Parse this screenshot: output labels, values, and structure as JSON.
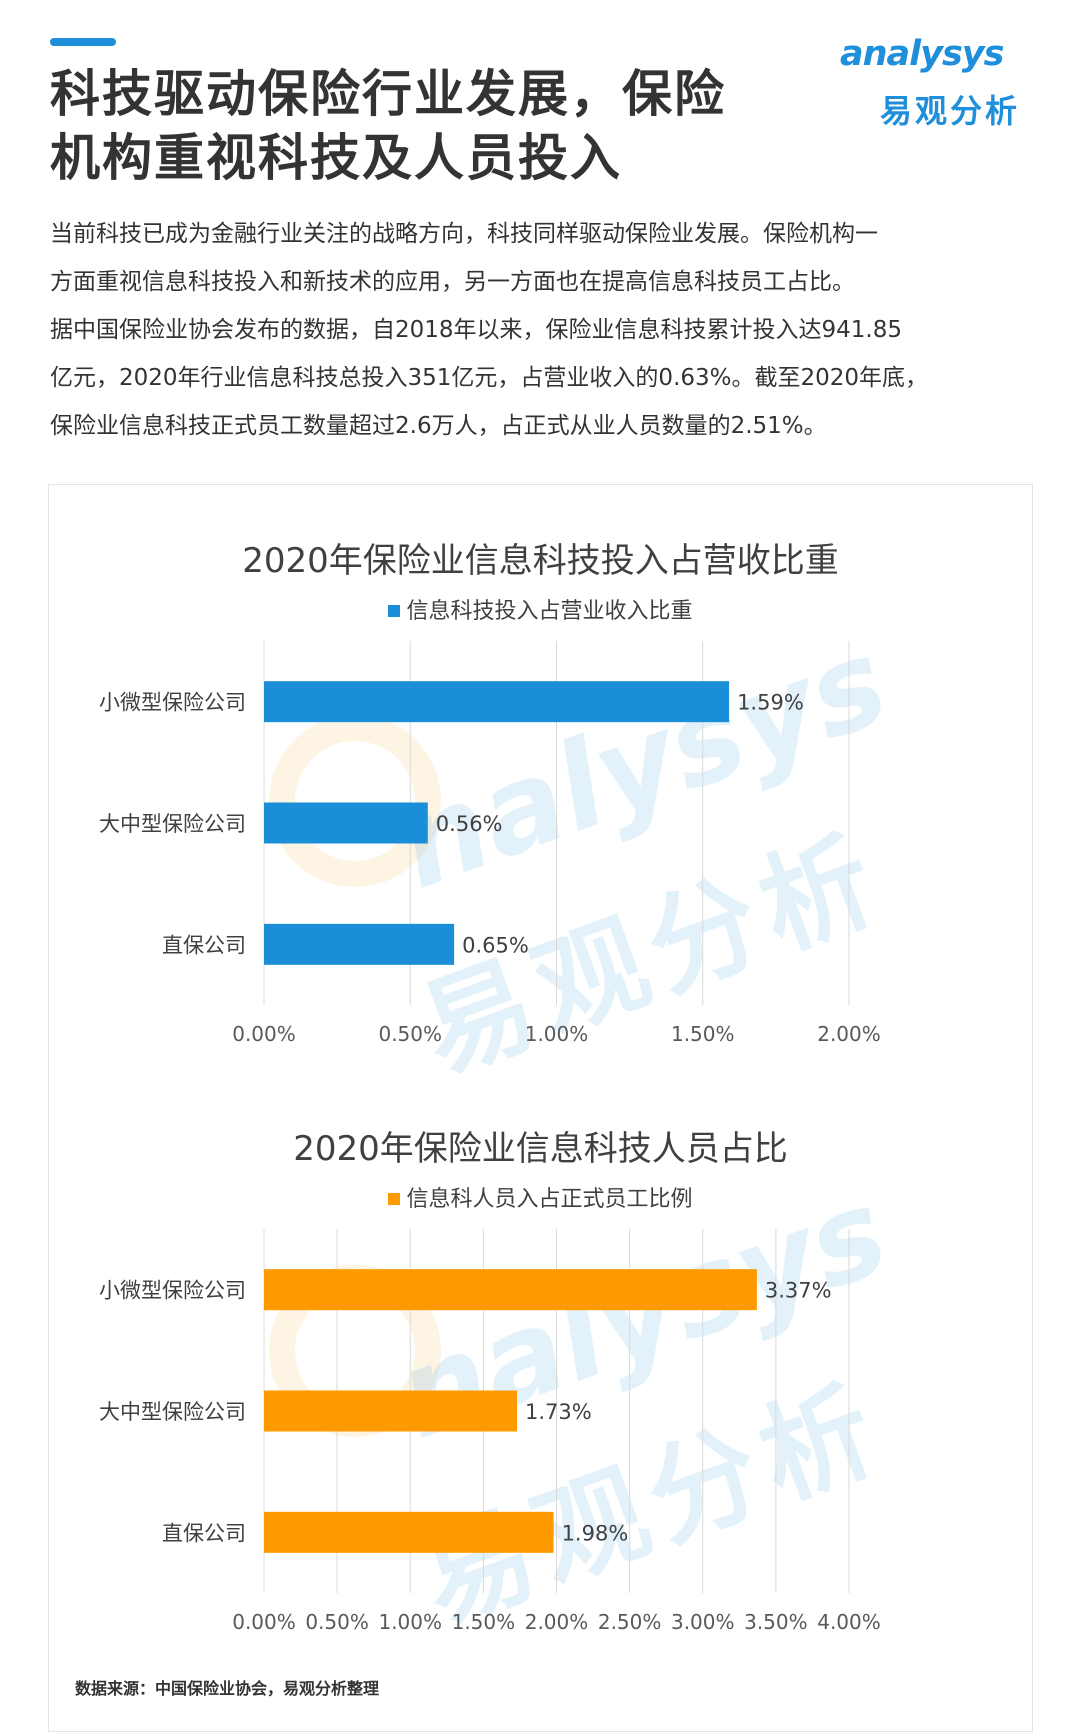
{
  "header": {
    "title_line1": "科技驱动保险行业发展，保险",
    "title_line2": "机构重视科技及人员投入",
    "logo_text": "analysys",
    "logo_cn": "易观分析"
  },
  "intro": [
    "当前科技已成为金融行业关注的战略方向，科技同样驱动保险业发展。保险机构一",
    "方面重视信息科技投入和新技术的应用，另一方面也在提高信息科技员工占比。",
    "据中国保险业协会发布的数据，自2018年以来，保险业信息科技累计投入达941.85",
    "亿元，2020年行业信息科技总投入351亿元，占营业收入的0.63%。截至2020年底，",
    "保险业信息科技正式员工数量超过2.6万人，占正式从业人员数量的2.51%。"
  ],
  "watermark": {
    "en": "nalysys",
    "cn": "易观分析"
  },
  "chart_data": [
    {
      "type": "bar",
      "orientation": "horizontal",
      "title": "2020年保险业信息科技投入占营收比重",
      "categories": [
        "小微型保险公司",
        "大中型保险公司",
        "直保公司"
      ],
      "series": [
        {
          "name": "信息科技投入占营业收入比重",
          "values": [
            1.59,
            0.56,
            0.65
          ],
          "color": "#1a8fd8"
        }
      ],
      "value_labels": [
        "1.59%",
        "0.56%",
        "0.65%"
      ],
      "xlim": [
        0,
        2.0
      ],
      "xticks": [
        0,
        0.5,
        1.0,
        1.5,
        2.0
      ],
      "xtick_labels": [
        "0.00%",
        "0.50%",
        "1.00%",
        "1.50%",
        "2.00%"
      ],
      "grid": "vertical",
      "legend_position": "top"
    },
    {
      "type": "bar",
      "orientation": "horizontal",
      "title": "2020年保险业信息科技人员占比",
      "categories": [
        "小微型保险公司",
        "大中型保险公司",
        "直保公司"
      ],
      "series": [
        {
          "name": "信息科人员入占正式员工比例",
          "values": [
            3.37,
            1.73,
            1.98
          ],
          "color": "#ff9900"
        }
      ],
      "value_labels": [
        "3.37%",
        "1.73%",
        "1.98%"
      ],
      "xlim": [
        0,
        4.0
      ],
      "xticks": [
        0,
        0.5,
        1.0,
        1.5,
        2.0,
        2.5,
        3.0,
        3.5,
        4.0
      ],
      "xtick_labels": [
        "0.00%",
        "0.50%",
        "1.00%",
        "1.50%",
        "2.00%",
        "2.50%",
        "3.00%",
        "3.50%",
        "4.00%"
      ],
      "grid": "vertical",
      "legend_position": "top"
    }
  ],
  "source": "数据来源：中国保险业协会，易观分析整理"
}
